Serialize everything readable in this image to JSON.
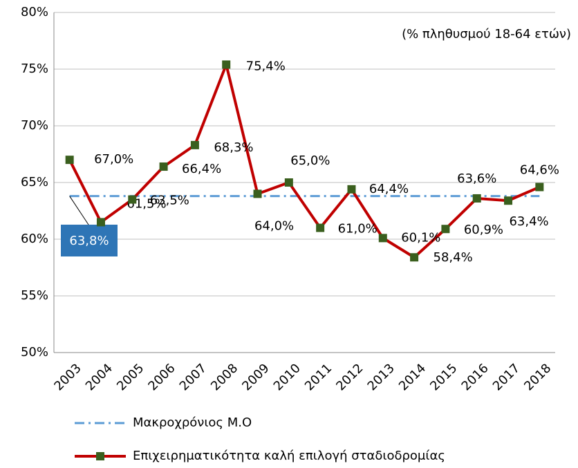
{
  "chart_data": {
    "type": "line",
    "subtitle": "(% πληθυσμού 18-64 ετών)",
    "categories": [
      "2003",
      "2004",
      "2005",
      "2006",
      "2007",
      "2008",
      "2009",
      "2010",
      "2011",
      "2012",
      "2013",
      "2014",
      "2015",
      "2016",
      "2017",
      "2018"
    ],
    "series": [
      {
        "name": "Μακροχρόνιος Μ.Ο",
        "color": "#5b9bd5",
        "values": [
          63.8,
          63.8,
          63.8,
          63.8,
          63.8,
          63.8,
          63.8,
          63.8,
          63.8,
          63.8,
          63.8,
          63.8,
          63.8,
          63.8,
          63.8,
          63.8
        ],
        "value_label": "63,8%"
      },
      {
        "name": "Επιχειρηματικότητα καλή επιλογή σταδιοδρομίας",
        "color": "#c00000",
        "marker_color": "#3a5f1e",
        "values": [
          67.0,
          61.5,
          63.5,
          66.4,
          68.3,
          75.4,
          64.0,
          65.0,
          61.0,
          64.4,
          60.1,
          58.4,
          60.9,
          63.6,
          63.4,
          64.6
        ],
        "value_labels": [
          "67,0%",
          "61,5%",
          "63,5%",
          "66,4%",
          "68,3%",
          "75,4%",
          "64,0%",
          "65,0%",
          "61,0%",
          "64,4%",
          "60,1%",
          "58,4%",
          "60,9%",
          "63,6%",
          "63,4%",
          "64,6%"
        ]
      }
    ],
    "ylim": [
      50,
      80
    ],
    "yticks": [
      {
        "value": 50,
        "label": "50%"
      },
      {
        "value": 55,
        "label": "55%"
      },
      {
        "value": 60,
        "label": "60%"
      },
      {
        "value": 65,
        "label": "65%"
      },
      {
        "value": 70,
        "label": "70%"
      },
      {
        "value": 75,
        "label": "75%"
      },
      {
        "value": 80,
        "label": "80%"
      }
    ],
    "grid": true,
    "legend": "bottom"
  }
}
